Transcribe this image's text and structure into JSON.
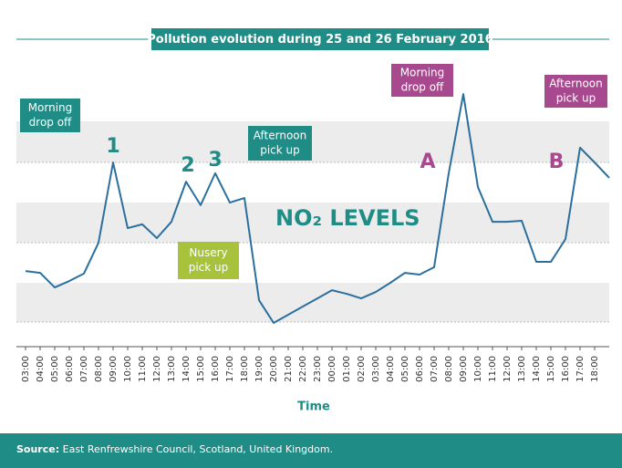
{
  "chart_data": {
    "type": "line",
    "title": "Pollution evolution during 25 and 26 February 2016",
    "xlabel": "Time",
    "categories": [
      "03:00",
      "04:00",
      "05:00",
      "06:00",
      "07:00",
      "08:00",
      "09:00",
      "10:00",
      "11:00",
      "12:00",
      "13:00",
      "14:00",
      "15:00",
      "16:00",
      "17:00",
      "18:00",
      "19:00",
      "20:00",
      "21:00",
      "22:00",
      "23:00",
      "00:00",
      "01:00",
      "02:00",
      "03:00",
      "04:00",
      "05:00",
      "06:00",
      "07:00",
      "08:00",
      "09:00",
      "10:00",
      "11:00",
      "12:00",
      "13:00",
      "14:00",
      "15:00",
      "16:00",
      "17:00",
      "18:00",
      null
    ],
    "series": [
      {
        "name": "NO₂ LEVELS",
        "color": "#2b6f9e",
        "values": [
          29.6,
          28.9,
          23.2,
          25.7,
          28.6,
          40.7,
          72.1,
          46.4,
          47.9,
          42.5,
          48.9,
          64.6,
          55.4,
          67.9,
          56.4,
          58.2,
          18.2,
          9.3,
          12.5,
          15.7,
          18.9,
          22.1,
          20.7,
          18.9,
          21.4,
          25.0,
          28.9,
          28.2,
          31.1,
          67.9,
          98.9,
          62.5,
          48.9,
          48.9,
          49.3,
          33.2,
          33.2,
          42.1,
          77.9,
          72.1,
          66.1
        ]
      }
    ],
    "ylim": [
      0,
      100
    ],
    "labels": [
      {
        "text": [
          "Morning",
          "drop off"
        ],
        "color": "#1f8c86"
      },
      {
        "text": [
          "Afternoon",
          "pick up"
        ],
        "color": "#1f8c86"
      },
      {
        "text": [
          "Nusery",
          "pick up"
        ],
        "color": "#a8c23c"
      },
      {
        "text": [
          "Morning",
          "drop off"
        ],
        "color": "#a8498f"
      },
      {
        "text": [
          "Afternoon",
          "pick up"
        ],
        "color": "#a8498f"
      }
    ],
    "markers": [
      {
        "text": "1",
        "color": "#1f8c86"
      },
      {
        "text": "2",
        "color": "#1f8c86"
      },
      {
        "text": "3",
        "color": "#1f8c86"
      },
      {
        "text": "A",
        "color": "#a8498f"
      },
      {
        "text": "B",
        "color": "#a8498f"
      }
    ],
    "source": {
      "label": "Source:",
      "text": "East Renfrewshire Council, Scotland, United Kingdom."
    }
  }
}
